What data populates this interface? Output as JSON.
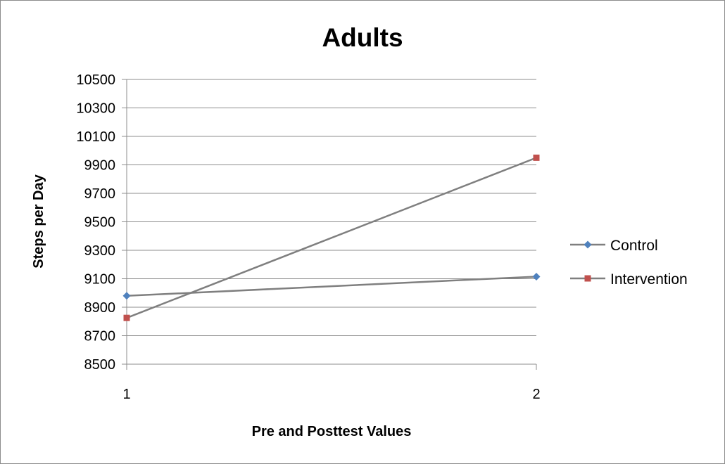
{
  "chart_data": {
    "type": "line",
    "title": "Adults",
    "xlabel": "Pre and Posttest Values",
    "ylabel": "Steps per Day",
    "x": [
      1,
      2
    ],
    "x_tick_labels": [
      "1",
      "2"
    ],
    "ylim": [
      8500,
      10500
    ],
    "y_ticks": [
      8500,
      8700,
      8900,
      9100,
      9300,
      9500,
      9700,
      9900,
      10100,
      10300,
      10500
    ],
    "grid": true,
    "legend_position": "right",
    "series": [
      {
        "name": "Control",
        "values": [
          8980,
          9115
        ],
        "color": "#4f81bd",
        "marker": "diamond",
        "line_color": "#7f7f7f"
      },
      {
        "name": "Intervention",
        "values": [
          8825,
          9950
        ],
        "color": "#c0504d",
        "marker": "square",
        "line_color": "#7f7f7f"
      }
    ]
  }
}
